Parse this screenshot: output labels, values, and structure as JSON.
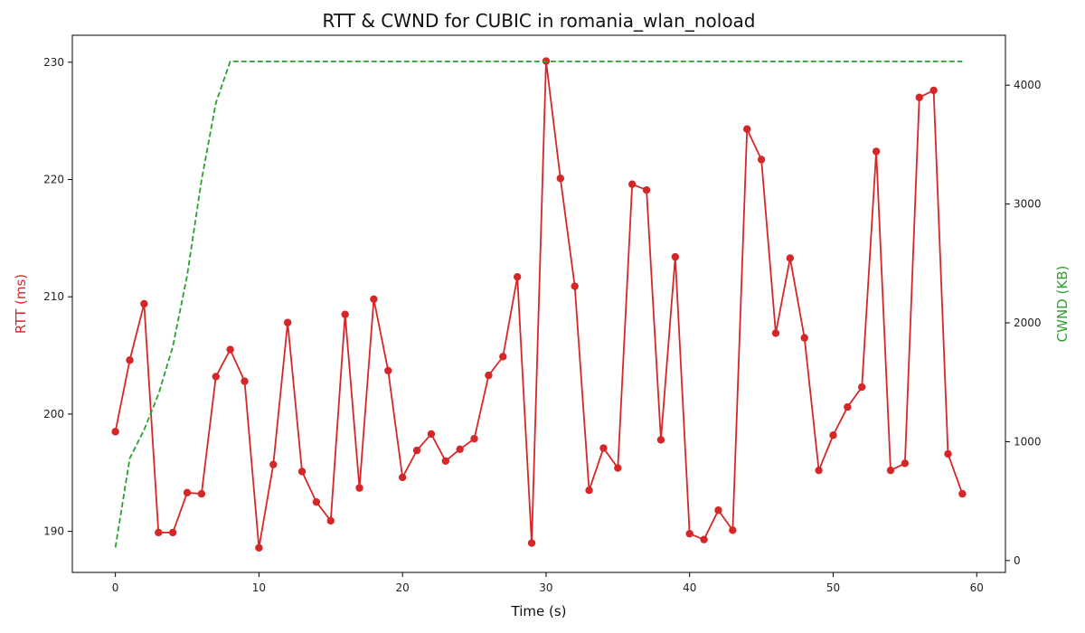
{
  "chart_data": {
    "type": "line",
    "title": "RTT & CWND for CUBIC in romania_wlan_noload",
    "xlabel": "Time (s)",
    "ylabel_left": "RTT (ms)",
    "ylabel_right": "CWND (KB)",
    "xlim": [
      -3,
      62
    ],
    "ylim_left": [
      186.5,
      232.3
    ],
    "ylim_right": [
      -100,
      4420
    ],
    "x_ticks": [
      0,
      10,
      20,
      30,
      40,
      50,
      60
    ],
    "y_left_ticks": [
      190,
      200,
      210,
      220,
      230
    ],
    "y_right_ticks": [
      0,
      1000,
      2000,
      3000,
      4000
    ],
    "grid": false,
    "colors": {
      "rtt": "#d62728",
      "cwnd": "#2ca02c"
    },
    "series": [
      {
        "key": "rtt",
        "axis": "left",
        "style": "solid-markers",
        "x": [
          0,
          1,
          2,
          3,
          4,
          5,
          6,
          7,
          8,
          9,
          10,
          11,
          12,
          13,
          14,
          15,
          16,
          17,
          18,
          19,
          20,
          21,
          22,
          23,
          24,
          25,
          26,
          27,
          28,
          29,
          30,
          31,
          32,
          33,
          34,
          35,
          36,
          37,
          38,
          39,
          40,
          41,
          42,
          43,
          44,
          45,
          46,
          47,
          48,
          49,
          50,
          51,
          52,
          53,
          54,
          55,
          56,
          57,
          58,
          59
        ],
        "values": [
          198.5,
          204.6,
          209.4,
          189.9,
          189.9,
          193.3,
          193.2,
          203.2,
          205.5,
          202.8,
          188.6,
          195.7,
          207.8,
          195.1,
          192.5,
          190.9,
          208.5,
          193.7,
          209.8,
          203.7,
          194.6,
          196.9,
          198.3,
          196.0,
          197.0,
          197.9,
          203.3,
          204.9,
          211.7,
          189.0,
          230.1,
          220.1,
          210.9,
          193.5,
          197.1,
          195.4,
          219.6,
          219.1,
          197.8,
          213.4,
          189.8,
          189.3,
          191.8,
          190.1,
          224.3,
          221.7,
          206.9,
          213.3,
          206.5,
          195.2,
          198.2,
          200.6,
          202.3,
          222.4,
          195.2,
          195.8,
          227.0,
          227.6,
          196.6,
          193.2
        ]
      },
      {
        "key": "cwnd",
        "axis": "right",
        "style": "dashed",
        "x": [
          0,
          1,
          2,
          3,
          4,
          5,
          6,
          7,
          8,
          9,
          10,
          11,
          12,
          13,
          14,
          15,
          16,
          17,
          18,
          19,
          20,
          21,
          22,
          23,
          24,
          25,
          26,
          27,
          28,
          29,
          30,
          31,
          32,
          33,
          34,
          35,
          36,
          37,
          38,
          39,
          40,
          41,
          42,
          43,
          44,
          45,
          46,
          47,
          48,
          49,
          50,
          51,
          52,
          53,
          54,
          55,
          56,
          57,
          58,
          59
        ],
        "values": [
          110,
          860,
          1100,
          1400,
          1800,
          2400,
          3200,
          3850,
          4200,
          4200,
          4200,
          4200,
          4200,
          4200,
          4200,
          4200,
          4200,
          4200,
          4200,
          4200,
          4200,
          4200,
          4200,
          4200,
          4200,
          4200,
          4200,
          4200,
          4200,
          4200,
          4200,
          4200,
          4200,
          4200,
          4200,
          4200,
          4200,
          4200,
          4200,
          4200,
          4200,
          4200,
          4200,
          4200,
          4200,
          4200,
          4200,
          4200,
          4200,
          4200,
          4200,
          4200,
          4200,
          4200,
          4200,
          4200,
          4200,
          4200,
          4200,
          4200
        ]
      }
    ]
  }
}
